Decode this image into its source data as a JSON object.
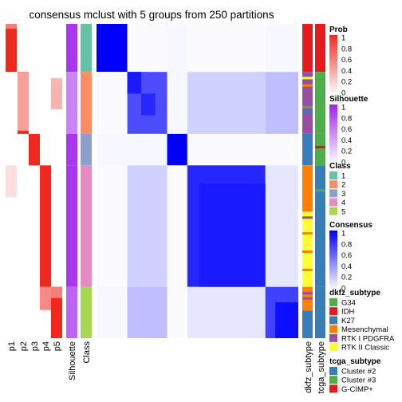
{
  "chart_data": {
    "type": "heatmap",
    "title": "consensus mclust with 5 groups from 250 partitions",
    "prob_columns": [
      "p1",
      "p2",
      "p3",
      "p4",
      "p5"
    ],
    "silhouette_label": "Silhouette",
    "class_label": "Class",
    "right_annotations": [
      "dkfz_subtype",
      "tcga_subtype"
    ],
    "sample_groups": [
      {
        "class": "1",
        "size": 58,
        "dkfz": "IDH",
        "tcga": "G-CIMP+"
      },
      {
        "class": "2",
        "size": 75,
        "dkfz": "mixed",
        "tcga": "Cluster #3"
      },
      {
        "class": "3",
        "size": 38,
        "dkfz": "K27",
        "tcga": "Cluster #3"
      },
      {
        "class": "4",
        "size": 147,
        "dkfz": "RTK II Classic",
        "tcga": "Cluster #2"
      },
      {
        "class": "5",
        "size": 62,
        "dkfz": "Mesenchymal",
        "tcga": "Cluster #2"
      }
    ],
    "legends": {
      "prob": {
        "title": "Prob",
        "ticks": [
          "1",
          "0.8",
          "0.6",
          "0.4",
          "0.2",
          "0"
        ],
        "color_high": "#ee2a1e",
        "color_low": "#ffffff"
      },
      "silhouette": {
        "title": "Silhouette",
        "ticks": [
          "1",
          "0.8",
          "0.6",
          "0.4",
          "0.2",
          "0"
        ],
        "color_high": "#a020f0",
        "color_low": "#ffffff"
      },
      "class": {
        "title": "Class",
        "items": [
          {
            "label": "1",
            "color": "#66c2a5"
          },
          {
            "label": "2",
            "color": "#fc8d62"
          },
          {
            "label": "3",
            "color": "#8da0cb"
          },
          {
            "label": "4",
            "color": "#e78ac3"
          },
          {
            "label": "5",
            "color": "#a6d854"
          }
        ]
      },
      "consensus": {
        "title": "Consensus",
        "ticks": [
          "1",
          "0.8",
          "0.6",
          "0.4",
          "0.2",
          "0"
        ],
        "color_high": "#0000ff",
        "color_low": "#ffffff"
      },
      "dkfz_subtype": {
        "title": "dkfz_subtype",
        "items": [
          {
            "label": "G34",
            "color": "#4daf4a"
          },
          {
            "label": "IDH",
            "color": "#e41a1c"
          },
          {
            "label": "K27",
            "color": "#377eb8"
          },
          {
            "label": "Mesenchymal",
            "color": "#ff7f00"
          },
          {
            "label": "RTK I PDGFRA",
            "color": "#984ea3"
          },
          {
            "label": "RTK II Classic",
            "color": "#ffff33"
          }
        ]
      },
      "tcga_subtype": {
        "title": "tcga_subtype",
        "items": [
          {
            "label": "Cluster #2",
            "color": "#377eb8"
          },
          {
            "label": "Cluster #3",
            "color": "#4daf4a"
          },
          {
            "label": "G-CIMP+",
            "color": "#e41a1c"
          }
        ]
      }
    }
  }
}
